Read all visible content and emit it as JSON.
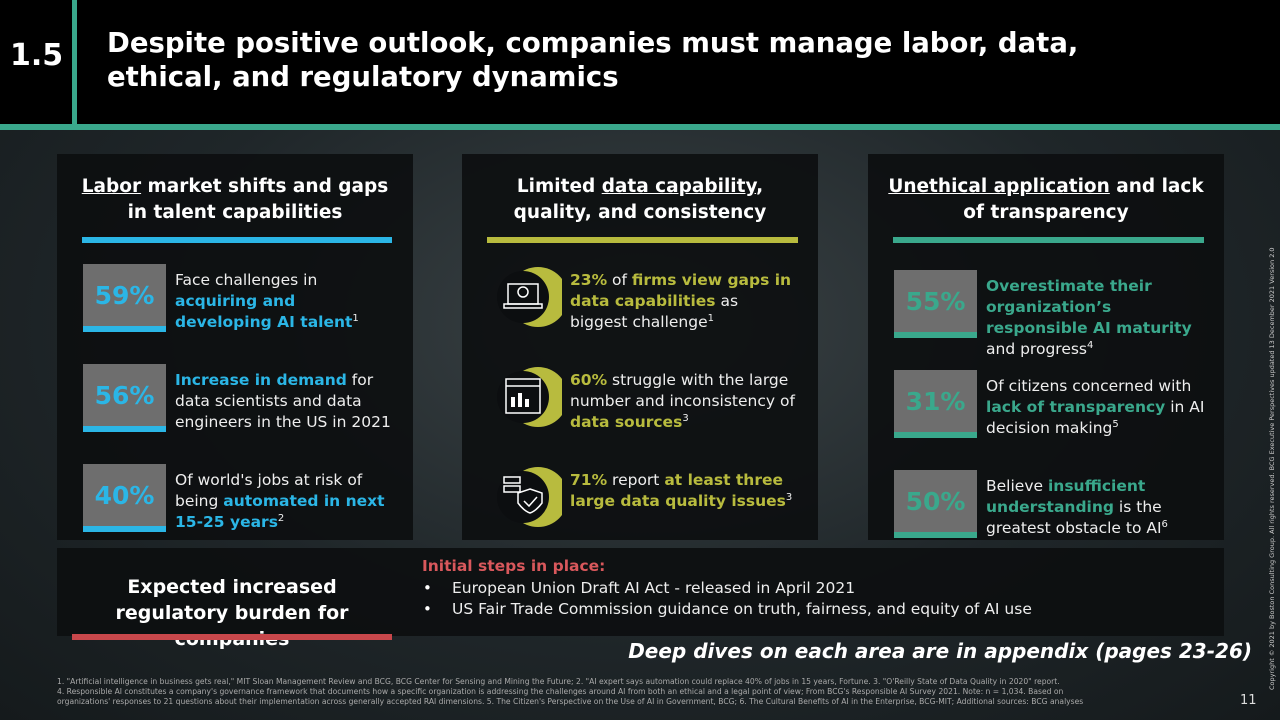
{
  "header": {
    "number": "1.5",
    "title": "Despite positive outlook, companies must manage labor, data, ethical, and regulatory dynamics"
  },
  "columns": [
    {
      "color": "#2bb6e6",
      "heading": [
        {
          "t": "Labor",
          "u": true
        },
        {
          "t": " market shifts and gaps in talent capabilities"
        }
      ],
      "items": [
        {
          "stat": "59%",
          "text": [
            {
              "t": "Face challenges in "
            },
            {
              "t": "acquiring and developing AI talent",
              "b": true
            },
            {
              "t": "1",
              "sup": true
            }
          ]
        },
        {
          "stat": "56%",
          "text": [
            {
              "t": "Increase in demand",
              "b": true
            },
            {
              "t": " for data scientists and data engineers in the US in 2021"
            }
          ]
        },
        {
          "stat": "40%",
          "text": [
            {
              "t": "Of world's jobs at risk of being "
            },
            {
              "t": "automated in next 15-25 years",
              "b": true
            },
            {
              "t": "2",
              "sup": true
            }
          ]
        }
      ]
    },
    {
      "color": "#b8bb3e",
      "heading": [
        {
          "t": "Limited "
        },
        {
          "t": "data capability",
          "u": true
        },
        {
          "t": ", quality, and consistency"
        }
      ],
      "items": [
        {
          "text": [
            {
              "t": "23%",
              "b": true
            },
            {
              "t": " of "
            },
            {
              "t": "firms view gaps in data capabilities",
              "b": true
            },
            {
              "t": " as biggest challenge"
            },
            {
              "t": "1",
              "sup": true
            }
          ]
        },
        {
          "text": [
            {
              "t": "60%",
              "b": true
            },
            {
              "t": " struggle with the large number and inconsistency of "
            },
            {
              "t": "data sources",
              "b": true
            },
            {
              "t": "3",
              "sup": true
            }
          ]
        },
        {
          "text": [
            {
              "t": "71%",
              "b": true
            },
            {
              "t": " report "
            },
            {
              "t": "at least three large data quality issues",
              "b": true
            },
            {
              "t": "3",
              "sup": true
            }
          ]
        }
      ]
    },
    {
      "color": "#3aa88c",
      "heading": [
        {
          "t": "Unethical application",
          "u": true
        },
        {
          "t": " and lack of transparency"
        }
      ],
      "items": [
        {
          "stat": "55%",
          "text": [
            {
              "t": "Overestimate their organization’s responsible AI maturity",
              "b": true
            },
            {
              "t": " and progress"
            },
            {
              "t": "4",
              "sup": true
            }
          ]
        },
        {
          "stat": "31%",
          "text": [
            {
              "t": "Of citizens concerned with "
            },
            {
              "t": "lack of transparency",
              "b": true
            },
            {
              "t": " in AI decision making"
            },
            {
              "t": "5",
              "sup": true
            }
          ]
        },
        {
          "stat": "50%",
          "text": [
            {
              "t": "Believe "
            },
            {
              "t": "insufficient understanding",
              "b": true
            },
            {
              "t": " is the greatest obstacle to AI"
            },
            {
              "t": "6",
              "sup": true
            }
          ]
        }
      ]
    }
  ],
  "regulatory": {
    "heading": "Expected increased regulatory burden for companies",
    "label": "Initial steps in place:",
    "bullets": [
      "European Union Draft AI Act - released in April 2021",
      "US Fair Trade Commission guidance on truth, fairness, and equity of AI use"
    ]
  },
  "appendix_note": "Deep dives on each area are in appendix (pages 23-26)",
  "footnotes": [
    "1. \"Artificial intelligence in business gets real,\" MIT Sloan Management Review and BCG, BCG Center for Sensing and Mining the Future; 2. \"AI expert says automation could replace 40% of jobs in 15 years, Fortune. 3. \"O'Reilly State of Data Quality in 2020\" report.",
    "4. Responsible AI constitutes a company's governance framework that documents how a specific organization is addressing the challenges around AI from both an ethical and a legal point of view; From BCG's Responsible AI Survey 2021. Note: n = 1,034. Based on",
    "organizations' responses to 21 questions about their implementation across generally accepted RAI dimensions. 5. The Citizen's Perspective on the Use of AI in Government, BCG; 6. The Cultural Benefits of AI in the Enterprise, BCG-MIT; Additional sources: BCG analyses"
  ],
  "page_number": "11",
  "copyright": "Copyright © 2021 by Boston Consulting Group. All rights reserved. BCG Executive Perspectives updated 13 December 2021 Version 2.0"
}
